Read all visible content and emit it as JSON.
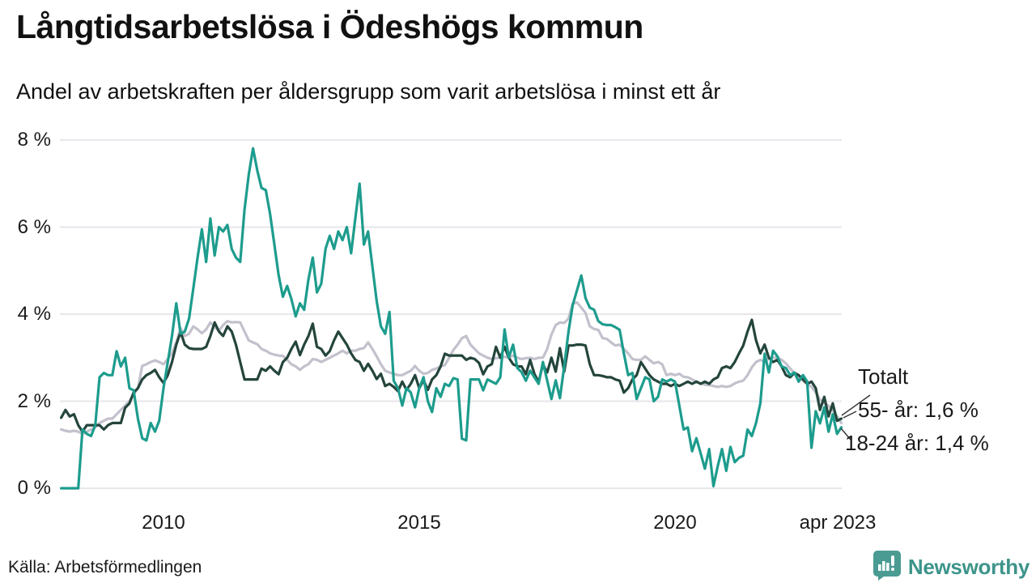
{
  "header": {
    "title": "Långtidsarbetslösa i Ödeshögs kommun",
    "subtitle": "Andel av arbetskraften per åldersgrupp som varit arbetslösa i minst ett år"
  },
  "footer": {
    "source": "Källa: Arbetsförmedlingen",
    "brand": "Newsworthy",
    "brand_icon": "newsworthy-speech-bubble-chart-icon"
  },
  "colors": {
    "teal": "#1d9c8d",
    "dark_green": "#24453c",
    "gray": "#c2c1cc",
    "grid": "#e7e6eb",
    "leader_line": "#333333",
    "text": "#1a1a1a",
    "brand_teal": "#3d948a"
  },
  "annotations": [
    {
      "text": "Totalt",
      "series": "Totalt"
    },
    {
      "text": "55- år: 1,6 %",
      "series": "55- år"
    },
    {
      "text": "18-24 år: 1,4 %",
      "series": "18-24 år"
    }
  ],
  "chart_data": {
    "type": "line",
    "title": "Långtidsarbetslösa i Ödeshögs kommun",
    "subtitle": "Andel av arbetskraften per åldersgrupp som varit arbetslösa i minst ett år",
    "unit": "%",
    "x_start": "2008-01",
    "x_end": "2023-04",
    "x_frequency": "monthly",
    "x_ticks": [
      "2010",
      "2015",
      "2020",
      "apr 2023"
    ],
    "y_ticks": [
      "8 %",
      "6 %",
      "4 %",
      "2 %",
      "0 %"
    ],
    "ylim": [
      0,
      8.3
    ],
    "grid": true,
    "legend_position": "end-of-line-labels",
    "series": [
      {
        "name": "Totalt",
        "color_key": "gray",
        "end_value_label": "Totalt",
        "values": [
          1.35,
          1.32,
          1.3,
          1.32,
          1.3,
          1.25,
          1.3,
          1.35,
          1.4,
          1.5,
          1.55,
          1.6,
          1.6,
          1.7,
          1.8,
          1.9,
          2.0,
          2.15,
          2.3,
          2.81,
          2.85,
          2.9,
          2.94,
          2.9,
          2.85,
          2.97,
          3.1,
          3.35,
          3.68,
          3.5,
          3.55,
          3.72,
          3.65,
          3.56,
          3.65,
          3.81,
          3.7,
          3.62,
          3.75,
          3.84,
          3.81,
          3.82,
          3.81,
          3.6,
          3.4,
          3.35,
          3.31,
          3.2,
          3.16,
          3.1,
          3.07,
          3.05,
          3.04,
          2.95,
          2.85,
          2.8,
          2.72,
          2.8,
          2.85,
          2.97,
          2.95,
          2.9,
          2.95,
          3.0,
          3.05,
          3.1,
          3.16,
          3.1,
          3.16,
          3.16,
          3.2,
          3.22,
          3.35,
          3.2,
          3.03,
          2.85,
          2.7,
          2.66,
          2.63,
          2.6,
          2.6,
          2.65,
          2.7,
          2.81,
          2.7,
          2.63,
          2.65,
          2.72,
          2.75,
          2.8,
          2.83,
          3.0,
          3.18,
          3.3,
          3.45,
          3.5,
          3.3,
          3.2,
          3.1,
          3.05,
          3.0,
          2.97,
          2.99,
          3.0,
          3.02,
          3.0,
          3.05,
          3.0,
          2.97,
          2.99,
          3.0,
          2.97,
          3.0,
          3.0,
          3.2,
          3.53,
          3.75,
          3.81,
          3.8,
          3.9,
          4.24,
          4.27,
          4.15,
          4.03,
          3.72,
          3.66,
          3.64,
          3.45,
          3.43,
          3.35,
          3.28,
          3.3,
          3.2,
          3.1,
          2.97,
          2.95,
          2.95,
          3.03,
          2.95,
          2.87,
          2.9,
          2.85,
          2.6,
          2.63,
          2.6,
          2.63,
          2.56,
          2.55,
          2.5,
          2.45,
          2.41,
          2.38,
          2.37,
          2.35,
          2.33,
          2.35,
          2.33,
          2.35,
          2.41,
          2.45,
          2.47,
          2.6,
          2.78,
          2.9,
          2.95,
          2.9,
          2.98,
          3.0,
          3.0,
          2.95,
          2.87,
          2.75,
          2.65,
          2.55,
          2.47,
          2.4,
          2.33,
          2.2,
          2.04,
          1.95,
          1.9,
          1.79,
          1.65,
          1.5
        ]
      },
      {
        "name": "55- år",
        "color_key": "dark_green",
        "end_value_label": "55- år: 1,6 %",
        "values": [
          1.62,
          1.8,
          1.65,
          1.7,
          1.45,
          1.3,
          1.45,
          1.45,
          1.45,
          1.45,
          1.35,
          1.45,
          1.5,
          1.5,
          1.5,
          1.85,
          1.95,
          2.2,
          2.3,
          2.5,
          2.6,
          2.65,
          2.72,
          2.55,
          2.42,
          2.6,
          2.9,
          3.3,
          3.59,
          3.3,
          3.22,
          3.2,
          3.2,
          3.2,
          3.25,
          3.5,
          3.81,
          3.6,
          3.5,
          3.72,
          3.6,
          3.3,
          2.9,
          2.5,
          2.5,
          2.5,
          2.5,
          2.75,
          2.7,
          2.8,
          2.7,
          2.62,
          2.9,
          3.0,
          3.2,
          3.37,
          3.06,
          3.3,
          3.5,
          3.78,
          3.25,
          3.2,
          3.05,
          3.15,
          3.4,
          3.6,
          3.45,
          3.3,
          3.1,
          2.95,
          2.9,
          2.7,
          2.86,
          2.7,
          2.51,
          2.63,
          2.35,
          2.4,
          2.33,
          2.23,
          2.45,
          2.26,
          2.4,
          2.6,
          2.3,
          2.48,
          2.26,
          2.5,
          2.6,
          2.8,
          3.09,
          3.05,
          3.05,
          3.05,
          3.05,
          2.95,
          3.0,
          2.97,
          2.88,
          2.62,
          2.8,
          2.85,
          3.25,
          3.0,
          3.25,
          3.0,
          2.85,
          2.8,
          2.8,
          2.62,
          2.95,
          2.63,
          2.44,
          2.85,
          2.66,
          3.0,
          2.68,
          3.22,
          2.68,
          3.28,
          3.28,
          3.3,
          3.3,
          3.28,
          2.85,
          2.6,
          2.6,
          2.58,
          2.55,
          2.55,
          2.5,
          2.47,
          2.2,
          2.3,
          2.5,
          2.6,
          2.9,
          2.75,
          2.6,
          2.5,
          2.45,
          2.4,
          2.4,
          2.35,
          2.4,
          2.35,
          2.4,
          2.45,
          2.4,
          2.45,
          2.4,
          2.45,
          2.4,
          2.5,
          2.55,
          2.76,
          2.8,
          2.76,
          2.9,
          3.1,
          3.28,
          3.6,
          3.87,
          3.4,
          3.1,
          3.3,
          3.0,
          2.9,
          2.95,
          2.8,
          2.6,
          2.55,
          2.65,
          2.6,
          2.5,
          2.4,
          2.45,
          2.3,
          1.8,
          2.1,
          1.65,
          1.95,
          1.55,
          1.6
        ]
      },
      {
        "name": "18-24 år",
        "color_key": "teal",
        "end_value_label": "18-24 år: 1,4 %",
        "values": [
          0.0,
          0.0,
          0.0,
          0.0,
          0.0,
          1.35,
          1.25,
          1.2,
          1.45,
          2.55,
          2.65,
          2.6,
          2.6,
          3.15,
          2.8,
          3.0,
          2.3,
          2.25,
          1.6,
          1.15,
          1.1,
          1.5,
          1.3,
          1.55,
          2.3,
          2.9,
          3.5,
          4.25,
          3.55,
          3.6,
          3.9,
          4.6,
          5.3,
          5.95,
          5.2,
          6.2,
          5.35,
          6.0,
          5.9,
          6.05,
          5.5,
          5.3,
          5.2,
          6.4,
          7.2,
          7.81,
          7.3,
          6.9,
          6.85,
          6.3,
          5.6,
          4.9,
          4.4,
          4.65,
          4.35,
          3.95,
          4.25,
          4.1,
          4.8,
          5.3,
          4.5,
          4.7,
          5.5,
          5.8,
          5.5,
          5.9,
          5.7,
          6.0,
          5.4,
          6.2,
          7.0,
          5.6,
          5.9,
          5.1,
          4.3,
          3.72,
          3.55,
          4.05,
          2.47,
          2.3,
          1.9,
          2.3,
          2.2,
          1.86,
          2.3,
          2.55,
          2.0,
          1.75,
          2.3,
          2.1,
          2.4,
          2.35,
          2.53,
          2.5,
          1.14,
          1.1,
          2.5,
          2.5,
          2.5,
          2.25,
          2.5,
          2.45,
          2.4,
          2.55,
          3.65,
          3.0,
          3.3,
          2.76,
          2.67,
          2.47,
          2.7,
          2.55,
          2.4,
          2.9,
          2.48,
          2.05,
          2.48,
          2.07,
          2.8,
          3.6,
          4.21,
          4.55,
          4.89,
          4.37,
          4.15,
          4.1,
          3.84,
          3.77,
          3.75,
          3.75,
          3.7,
          3.64,
          3.1,
          2.6,
          2.65,
          2.05,
          2.3,
          2.55,
          2.5,
          2.0,
          2.1,
          2.5,
          2.45,
          2.5,
          2.45,
          1.9,
          1.35,
          1.4,
          0.85,
          1.15,
          0.8,
          0.45,
          0.9,
          0.05,
          0.5,
          0.9,
          0.4,
          0.95,
          0.6,
          0.7,
          0.75,
          1.35,
          1.2,
          1.5,
          1.95,
          3.09,
          2.66,
          3.16,
          3.03,
          2.8,
          2.76,
          2.6,
          2.66,
          2.45,
          2.6,
          2.45,
          0.93,
          1.77,
          1.49,
          1.86,
          1.3,
          1.7,
          1.25,
          1.4
        ]
      }
    ]
  }
}
